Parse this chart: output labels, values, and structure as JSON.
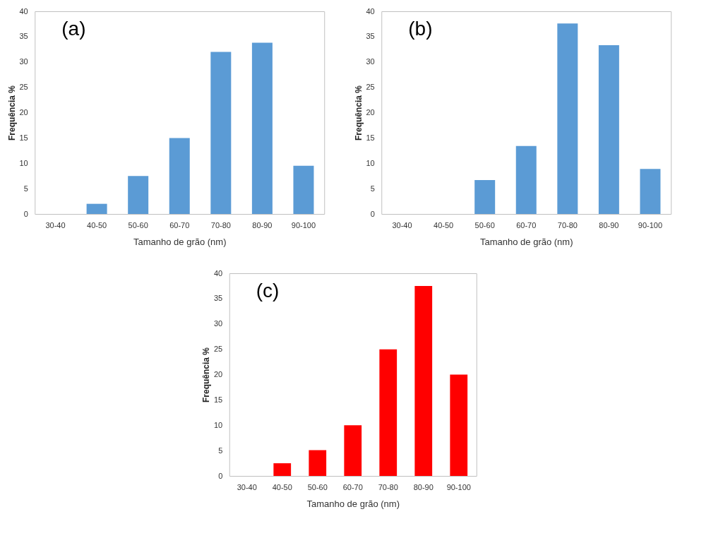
{
  "chart_data": [
    {
      "type": "bar",
      "categories": [
        "30-40",
        "40-50",
        "50-60",
        "60-70",
        "70-80",
        "80-90",
        "90-100"
      ],
      "values": [
        0,
        2,
        7.5,
        15,
        32,
        33.8,
        9.5
      ],
      "color": "#5b9bd5",
      "xlabel": "Tamanho de grão (nm)",
      "ylabel": "Frequência %",
      "ylim": [
        0,
        40
      ],
      "yticks": [
        0,
        5,
        10,
        15,
        20,
        25,
        30,
        35,
        40
      ],
      "annotations": [
        "(a)"
      ],
      "grid": false
    },
    {
      "type": "bar",
      "categories": [
        "30-40",
        "40-50",
        "50-60",
        "60-70",
        "70-80",
        "80-90",
        "90-100"
      ],
      "values": [
        0,
        0,
        6.7,
        13.4,
        37.6,
        33.3,
        8.9
      ],
      "color": "#5b9bd5",
      "xlabel": "Tamanho de grão (nm)",
      "ylabel": "Frequência %",
      "ylim": [
        0,
        40
      ],
      "yticks": [
        0,
        5,
        10,
        15,
        20,
        25,
        30,
        35,
        40
      ],
      "annotations": [
        "(b)"
      ],
      "grid": false
    },
    {
      "type": "bar",
      "categories": [
        "30-40",
        "40-50",
        "50-60",
        "60-70",
        "70-80",
        "80-90",
        "90-100"
      ],
      "values": [
        0,
        2.5,
        5.1,
        10,
        25,
        37.5,
        20
      ],
      "color": "#ff0000",
      "xlabel": "Tamanho de grão (nm)",
      "ylabel": "Frequência %",
      "ylim": [
        0,
        40
      ],
      "yticks": [
        0,
        5,
        10,
        15,
        20,
        25,
        30,
        35,
        40
      ],
      "annotations": [
        "(c)"
      ],
      "grid": false
    }
  ]
}
